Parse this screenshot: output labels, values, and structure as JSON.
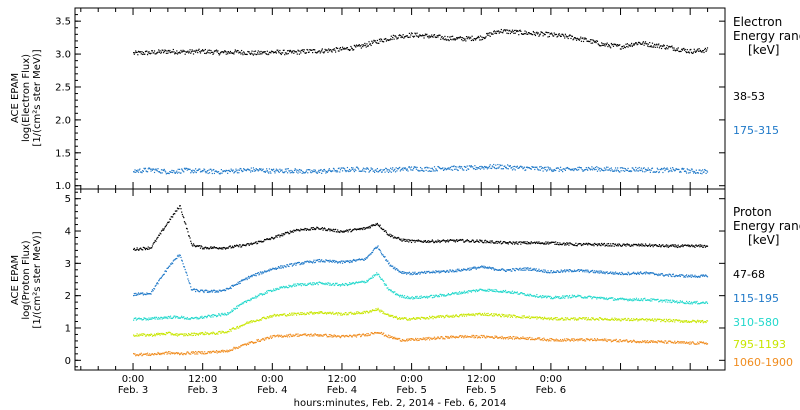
{
  "chart_data": [
    {
      "type": "scatter",
      "ylabel_lines": [
        "ACE EPAM",
        "log(Electron Flux)",
        "[1/(cm²s ster MeV)]"
      ],
      "ylim": [
        0.95,
        3.7
      ],
      "yticks": [
        1.0,
        1.5,
        2.0,
        2.5,
        3.0,
        3.5
      ],
      "yticklabels": [
        "1.0",
        "1.5",
        "2.0",
        "2.5",
        "3.0",
        "3.5"
      ],
      "legend_title_lines": [
        "Electron",
        "Energy ranges",
        "[keV]"
      ],
      "series": [
        {
          "name": "38-53",
          "color": "#000000",
          "x": [
            0,
            3,
            6,
            9,
            12,
            15,
            18,
            21,
            24,
            27,
            30,
            33,
            36,
            39,
            42,
            45,
            48,
            51,
            54,
            57,
            60,
            63,
            66,
            69,
            72,
            75,
            78,
            81,
            84,
            87,
            90,
            93,
            96,
            99
          ],
          "y": [
            3.02,
            3.03,
            3.05,
            3.04,
            3.05,
            3.03,
            3.04,
            3.02,
            3.04,
            3.03,
            3.05,
            3.06,
            3.08,
            3.12,
            3.2,
            3.27,
            3.3,
            3.28,
            3.25,
            3.24,
            3.26,
            3.36,
            3.34,
            3.32,
            3.3,
            3.27,
            3.22,
            3.15,
            3.12,
            3.18,
            3.14,
            3.1,
            3.05,
            3.07
          ]
        },
        {
          "name": "175-315",
          "color": "#1e78c8",
          "x": [
            0,
            3,
            6,
            9,
            12,
            15,
            18,
            21,
            24,
            27,
            30,
            33,
            36,
            39,
            42,
            45,
            48,
            51,
            54,
            57,
            60,
            63,
            66,
            69,
            72,
            75,
            78,
            81,
            84,
            87,
            90,
            93,
            96,
            99
          ],
          "y": [
            1.23,
            1.25,
            1.22,
            1.24,
            1.23,
            1.22,
            1.24,
            1.25,
            1.23,
            1.24,
            1.22,
            1.23,
            1.25,
            1.26,
            1.24,
            1.25,
            1.27,
            1.26,
            1.28,
            1.27,
            1.29,
            1.3,
            1.28,
            1.27,
            1.26,
            1.25,
            1.27,
            1.26,
            1.25,
            1.26,
            1.24,
            1.25,
            1.23,
            1.22
          ]
        }
      ]
    },
    {
      "type": "scatter",
      "ylabel_lines": [
        "ACE EPAM",
        "log(Proton Flux)",
        "[1/(cm²s ster MeV)]"
      ],
      "ylim": [
        -0.3,
        5.3
      ],
      "yticks": [
        0,
        1,
        2,
        3,
        4,
        5
      ],
      "yticklabels": [
        "0",
        "1",
        "2",
        "3",
        "4",
        "5"
      ],
      "legend_title_lines": [
        "Proton",
        "Energy ranges",
        "[keV]"
      ],
      "series": [
        {
          "name": "47-68",
          "color": "#000000",
          "x": [
            0,
            3,
            6,
            8,
            10,
            12,
            14,
            16,
            20,
            24,
            28,
            32,
            36,
            40,
            42,
            44,
            46,
            48,
            52,
            56,
            60,
            64,
            68,
            72,
            76,
            80,
            84,
            88,
            92,
            96,
            99
          ],
          "y": [
            3.45,
            3.5,
            4.3,
            4.8,
            3.6,
            3.5,
            3.5,
            3.5,
            3.6,
            3.8,
            4.05,
            4.1,
            4.0,
            4.1,
            4.25,
            3.9,
            3.75,
            3.7,
            3.7,
            3.72,
            3.7,
            3.65,
            3.65,
            3.65,
            3.6,
            3.6,
            3.58,
            3.58,
            3.55,
            3.55,
            3.55
          ]
        },
        {
          "name": "115-195",
          "color": "#1e78c8",
          "x": [
            0,
            3,
            6,
            8,
            10,
            12,
            14,
            16,
            20,
            24,
            28,
            32,
            36,
            40,
            42,
            44,
            46,
            48,
            52,
            56,
            60,
            64,
            68,
            72,
            76,
            80,
            84,
            88,
            92,
            96,
            99
          ],
          "y": [
            2.05,
            2.1,
            2.9,
            3.3,
            2.2,
            2.15,
            2.15,
            2.2,
            2.6,
            2.85,
            3.0,
            3.1,
            3.05,
            3.15,
            3.55,
            3.0,
            2.75,
            2.7,
            2.75,
            2.8,
            2.9,
            2.8,
            2.85,
            2.75,
            2.8,
            2.75,
            2.7,
            2.72,
            2.65,
            2.62,
            2.62
          ]
        },
        {
          "name": "310-580",
          "color": "#22d8cc",
          "x": [
            0,
            3,
            6,
            8,
            10,
            12,
            14,
            16,
            20,
            24,
            28,
            32,
            36,
            40,
            42,
            44,
            46,
            48,
            52,
            56,
            60,
            64,
            68,
            72,
            76,
            80,
            84,
            88,
            92,
            96,
            99
          ],
          "y": [
            1.3,
            1.3,
            1.35,
            1.35,
            1.3,
            1.35,
            1.4,
            1.45,
            1.9,
            2.2,
            2.35,
            2.4,
            2.35,
            2.45,
            2.7,
            2.2,
            2.0,
            1.95,
            2.0,
            2.1,
            2.2,
            2.15,
            2.05,
            1.95,
            2.0,
            1.95,
            1.9,
            1.9,
            1.85,
            1.8,
            1.8
          ]
        },
        {
          "name": "795-1193",
          "color": "#c8e600",
          "x": [
            0,
            3,
            6,
            8,
            10,
            12,
            14,
            16,
            20,
            24,
            28,
            32,
            36,
            40,
            42,
            44,
            46,
            48,
            52,
            56,
            60,
            64,
            68,
            72,
            76,
            80,
            84,
            88,
            92,
            96,
            99
          ],
          "y": [
            0.8,
            0.8,
            0.85,
            0.8,
            0.82,
            0.85,
            0.85,
            0.9,
            1.2,
            1.4,
            1.45,
            1.5,
            1.45,
            1.5,
            1.6,
            1.4,
            1.3,
            1.3,
            1.35,
            1.4,
            1.45,
            1.4,
            1.35,
            1.3,
            1.3,
            1.3,
            1.28,
            1.27,
            1.25,
            1.22,
            1.22
          ]
        },
        {
          "name": "1060-1900",
          "color": "#f08c1e",
          "x": [
            0,
            3,
            6,
            8,
            10,
            12,
            14,
            16,
            20,
            24,
            28,
            32,
            36,
            40,
            42,
            44,
            46,
            48,
            52,
            56,
            60,
            64,
            68,
            72,
            76,
            80,
            84,
            88,
            92,
            96,
            99
          ],
          "y": [
            0.2,
            0.2,
            0.25,
            0.22,
            0.25,
            0.25,
            0.28,
            0.3,
            0.55,
            0.75,
            0.8,
            0.8,
            0.75,
            0.8,
            0.9,
            0.75,
            0.65,
            0.65,
            0.7,
            0.75,
            0.75,
            0.72,
            0.7,
            0.65,
            0.65,
            0.65,
            0.62,
            0.6,
            0.58,
            0.55,
            0.55
          ]
        }
      ]
    }
  ],
  "x_axis": {
    "xlim": [
      -10,
      102
    ],
    "xlabel": "hours:minutes, Feb.  2, 2014 - Feb.  6, 2014",
    "ticks": [
      {
        "x": 0,
        "time": "0:00",
        "date": "Feb. 3"
      },
      {
        "x": 12,
        "time": "12:00",
        "date": "Feb. 3"
      },
      {
        "x": 24,
        "time": "0:00",
        "date": "Feb. 4"
      },
      {
        "x": 36,
        "time": "12:00",
        "date": "Feb. 4"
      },
      {
        "x": 48,
        "time": "0:00",
        "date": "Feb. 5"
      },
      {
        "x": 60,
        "time": "12:00",
        "date": "Feb. 5"
      },
      {
        "x": 72,
        "time": "0:00",
        "date": "Feb. 6"
      }
    ],
    "minor_step_hours": 3
  }
}
